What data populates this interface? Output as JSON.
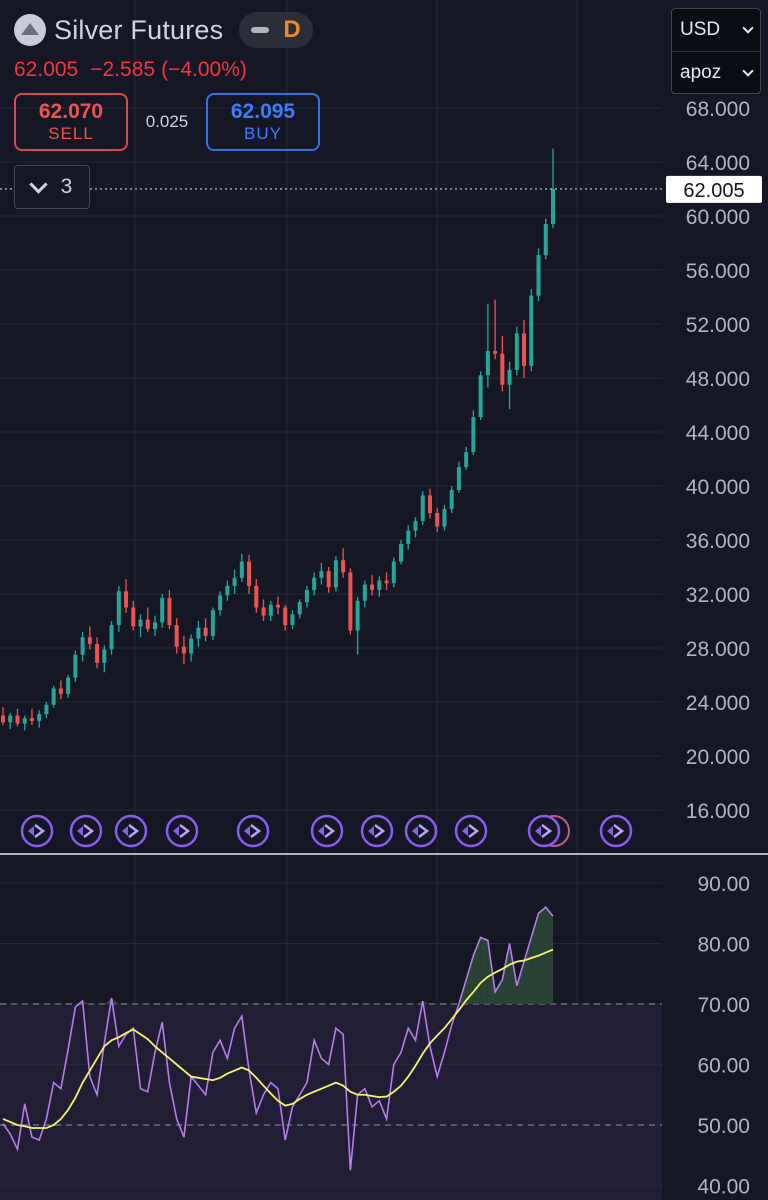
{
  "header": {
    "title": "Silver Futures",
    "timeframe": "D",
    "last_price": "62.005",
    "change": "−2.585",
    "change_pct": "(−4.00%)",
    "sell_price": "62.070",
    "sell_label": "SELL",
    "buy_price": "62.095",
    "buy_label": "BUY",
    "spread": "0.025",
    "collapse_count": "3"
  },
  "side_panel": {
    "currency": "USD",
    "account": "apoz"
  },
  "colors": {
    "background": "#151824",
    "up": "#26a69a",
    "down": "#ef5350",
    "rsi_line": "#b67de8",
    "rsi_ma": "#f5f56a"
  },
  "icons": [
    "logo-icon",
    "minus-icon",
    "chevron-down-icon",
    "event-arrow-icon"
  ],
  "chart_data": [
    {
      "type": "candlestick",
      "ylim": [
        12,
        69
      ],
      "y_ticks": [
        "68.000",
        "64.000",
        "60.000",
        "56.000",
        "52.000",
        "48.000",
        "44.000",
        "40.000",
        "36.000",
        "32.000",
        "28.000",
        "24.000",
        "20.000",
        "16.000"
      ],
      "y_tick_values": [
        68,
        64,
        60,
        56,
        52,
        48,
        44,
        40,
        36,
        32,
        28,
        24,
        20,
        16
      ],
      "last_price_label": "62.005",
      "last_price_value": 62.005,
      "grid": true,
      "candles": [
        [
          23.0,
          23.6,
          22.3,
          22.5
        ],
        [
          22.5,
          23.2,
          22.0,
          23.0
        ],
        [
          23.0,
          23.5,
          22.2,
          22.4
        ],
        [
          22.4,
          23.0,
          21.9,
          22.8
        ],
        [
          22.8,
          23.5,
          22.3,
          22.6
        ],
        [
          22.6,
          23.4,
          22.1,
          23.1
        ],
        [
          23.1,
          24.0,
          22.8,
          23.8
        ],
        [
          23.8,
          25.2,
          23.6,
          25.0
        ],
        [
          25.0,
          25.6,
          24.2,
          24.6
        ],
        [
          24.6,
          26.0,
          24.3,
          25.8
        ],
        [
          25.8,
          27.8,
          25.5,
          27.5
        ],
        [
          27.5,
          29.2,
          27.0,
          28.8
        ],
        [
          28.8,
          29.6,
          27.9,
          28.3
        ],
        [
          28.3,
          28.8,
          26.5,
          26.9
        ],
        [
          26.9,
          28.2,
          26.2,
          27.9
        ],
        [
          27.9,
          30.0,
          27.5,
          29.7
        ],
        [
          29.7,
          32.6,
          29.2,
          32.2
        ],
        [
          32.2,
          33.1,
          30.6,
          31.0
        ],
        [
          31.0,
          31.5,
          29.3,
          29.6
        ],
        [
          29.6,
          30.5,
          28.8,
          30.1
        ],
        [
          30.1,
          31.0,
          29.2,
          29.4
        ],
        [
          29.4,
          30.4,
          28.9,
          29.9
        ],
        [
          29.9,
          32.0,
          29.5,
          31.7
        ],
        [
          31.7,
          32.3,
          29.4,
          29.7
        ],
        [
          29.7,
          30.2,
          27.6,
          28.1
        ],
        [
          28.1,
          28.9,
          26.8,
          27.6
        ],
        [
          27.6,
          29.0,
          27.0,
          28.7
        ],
        [
          28.7,
          30.0,
          28.1,
          29.5
        ],
        [
          29.5,
          30.2,
          28.5,
          28.9
        ],
        [
          28.9,
          31.0,
          28.6,
          30.8
        ],
        [
          30.8,
          32.2,
          30.4,
          31.9
        ],
        [
          31.9,
          33.0,
          31.5,
          32.6
        ],
        [
          32.6,
          33.8,
          32.0,
          33.2
        ],
        [
          33.2,
          35.0,
          32.9,
          34.4
        ],
        [
          34.4,
          34.9,
          32.0,
          32.6
        ],
        [
          32.6,
          33.1,
          30.6,
          31.0
        ],
        [
          31.0,
          31.6,
          30.0,
          30.4
        ],
        [
          30.4,
          31.5,
          30.0,
          31.2
        ],
        [
          31.2,
          31.8,
          30.5,
          31.0
        ],
        [
          31.0,
          31.2,
          29.3,
          29.7
        ],
        [
          29.7,
          30.8,
          29.4,
          30.5
        ],
        [
          30.5,
          31.6,
          30.2,
          31.4
        ],
        [
          31.4,
          32.6,
          31.0,
          32.3
        ],
        [
          32.3,
          33.6,
          31.9,
          33.2
        ],
        [
          33.2,
          34.3,
          32.7,
          33.7
        ],
        [
          33.7,
          34.0,
          32.1,
          32.5
        ],
        [
          32.5,
          34.8,
          32.2,
          34.5
        ],
        [
          34.5,
          35.4,
          33.2,
          33.6
        ],
        [
          33.6,
          33.9,
          29.0,
          29.3
        ],
        [
          29.3,
          31.8,
          27.5,
          31.5
        ],
        [
          31.5,
          33.0,
          31.0,
          32.7
        ],
        [
          32.7,
          33.4,
          31.9,
          32.3
        ],
        [
          32.3,
          33.3,
          31.8,
          33.0
        ],
        [
          33.0,
          33.6,
          32.3,
          32.8
        ],
        [
          32.8,
          34.7,
          32.5,
          34.4
        ],
        [
          34.4,
          36.0,
          34.2,
          35.7
        ],
        [
          35.7,
          37.1,
          35.3,
          36.7
        ],
        [
          36.7,
          37.7,
          36.2,
          37.4
        ],
        [
          37.4,
          39.6,
          37.1,
          39.3
        ],
        [
          39.3,
          39.8,
          37.6,
          38.0
        ],
        [
          38.0,
          38.4,
          36.6,
          37.0
        ],
        [
          37.0,
          38.6,
          36.7,
          38.3
        ],
        [
          38.3,
          40.0,
          38.0,
          39.7
        ],
        [
          39.7,
          41.8,
          39.5,
          41.4
        ],
        [
          41.4,
          42.9,
          41.2,
          42.5
        ],
        [
          42.5,
          45.6,
          42.3,
          45.1
        ],
        [
          45.1,
          48.5,
          44.9,
          48.2
        ],
        [
          48.2,
          53.5,
          47.3,
          50.0
        ],
        [
          50.0,
          53.8,
          49.4,
          49.8
        ],
        [
          49.8,
          51.1,
          47.0,
          47.5
        ],
        [
          47.5,
          49.2,
          45.7,
          48.6
        ],
        [
          48.6,
          51.8,
          48.2,
          51.3
        ],
        [
          51.3,
          52.3,
          48.0,
          48.9
        ],
        [
          48.9,
          54.6,
          48.5,
          54.1
        ],
        [
          54.1,
          57.6,
          53.7,
          57.1
        ],
        [
          57.1,
          59.8,
          56.8,
          59.4
        ],
        [
          59.4,
          65.0,
          59.1,
          62.0
        ]
      ]
    },
    {
      "type": "line",
      "ylim": [
        40,
        91
      ],
      "y_ticks": [
        "90.00",
        "80.00",
        "70.00",
        "60.00",
        "50.00",
        "40.00"
      ],
      "y_tick_values": [
        90,
        80,
        70,
        60,
        50,
        40
      ],
      "levels": [
        70,
        50
      ],
      "series": [
        {
          "values": [
            50.2,
            48.5,
            46.0,
            53.5,
            48.0,
            47.5,
            51.0,
            57.0,
            56.0,
            62.5,
            69.5,
            70.5,
            58.0,
            55.0,
            63.5,
            71.0,
            63.0,
            65.0,
            66.0,
            56.0,
            55.5,
            62.0,
            67.0,
            57.0,
            51.0,
            48.0,
            58.0,
            56.5,
            55.0,
            62.0,
            64.0,
            61.0,
            66.0,
            68.0,
            59.0,
            52.0,
            55.0,
            57.0,
            56.0,
            47.5,
            53.0,
            55.0,
            57.0,
            64.0,
            61.0,
            60.0,
            66.0,
            65.0,
            42.5,
            55.0,
            56.0,
            53.0,
            54.0,
            51.0,
            60.0,
            62.0,
            66.0,
            64.0,
            70.5,
            63.0,
            58.0,
            62.0,
            66.5,
            70.0,
            74.0,
            78.0,
            81.0,
            80.5,
            72.0,
            74.0,
            80.0,
            73.0,
            77.0,
            81.0,
            85.0,
            86.0,
            84.5
          ]
        },
        {
          "values": [
            51.0,
            50.5,
            50.0,
            49.8,
            49.5,
            49.5,
            49.5,
            50.0,
            51.0,
            52.5,
            54.5,
            57.0,
            59.0,
            61.0,
            63.0,
            64.0,
            64.5,
            65.2,
            65.8,
            65.0,
            64.2,
            63.0,
            62.0,
            61.0,
            60.0,
            59.0,
            58.0,
            57.8,
            57.6,
            57.4,
            57.8,
            58.5,
            59.0,
            59.5,
            59.0,
            57.8,
            56.5,
            55.2,
            54.0,
            53.2,
            53.5,
            54.3,
            55.0,
            55.5,
            56.0,
            56.5,
            57.0,
            56.5,
            55.5,
            55.0,
            55.0,
            54.8,
            54.6,
            54.7,
            55.5,
            56.5,
            58.0,
            59.8,
            61.8,
            63.5,
            64.8,
            66.0,
            67.5,
            69.0,
            70.6,
            72.0,
            73.5,
            74.5,
            75.2,
            75.8,
            76.5,
            77.0,
            77.2,
            77.6,
            78.0,
            78.5,
            79.0
          ]
        }
      ]
    }
  ]
}
